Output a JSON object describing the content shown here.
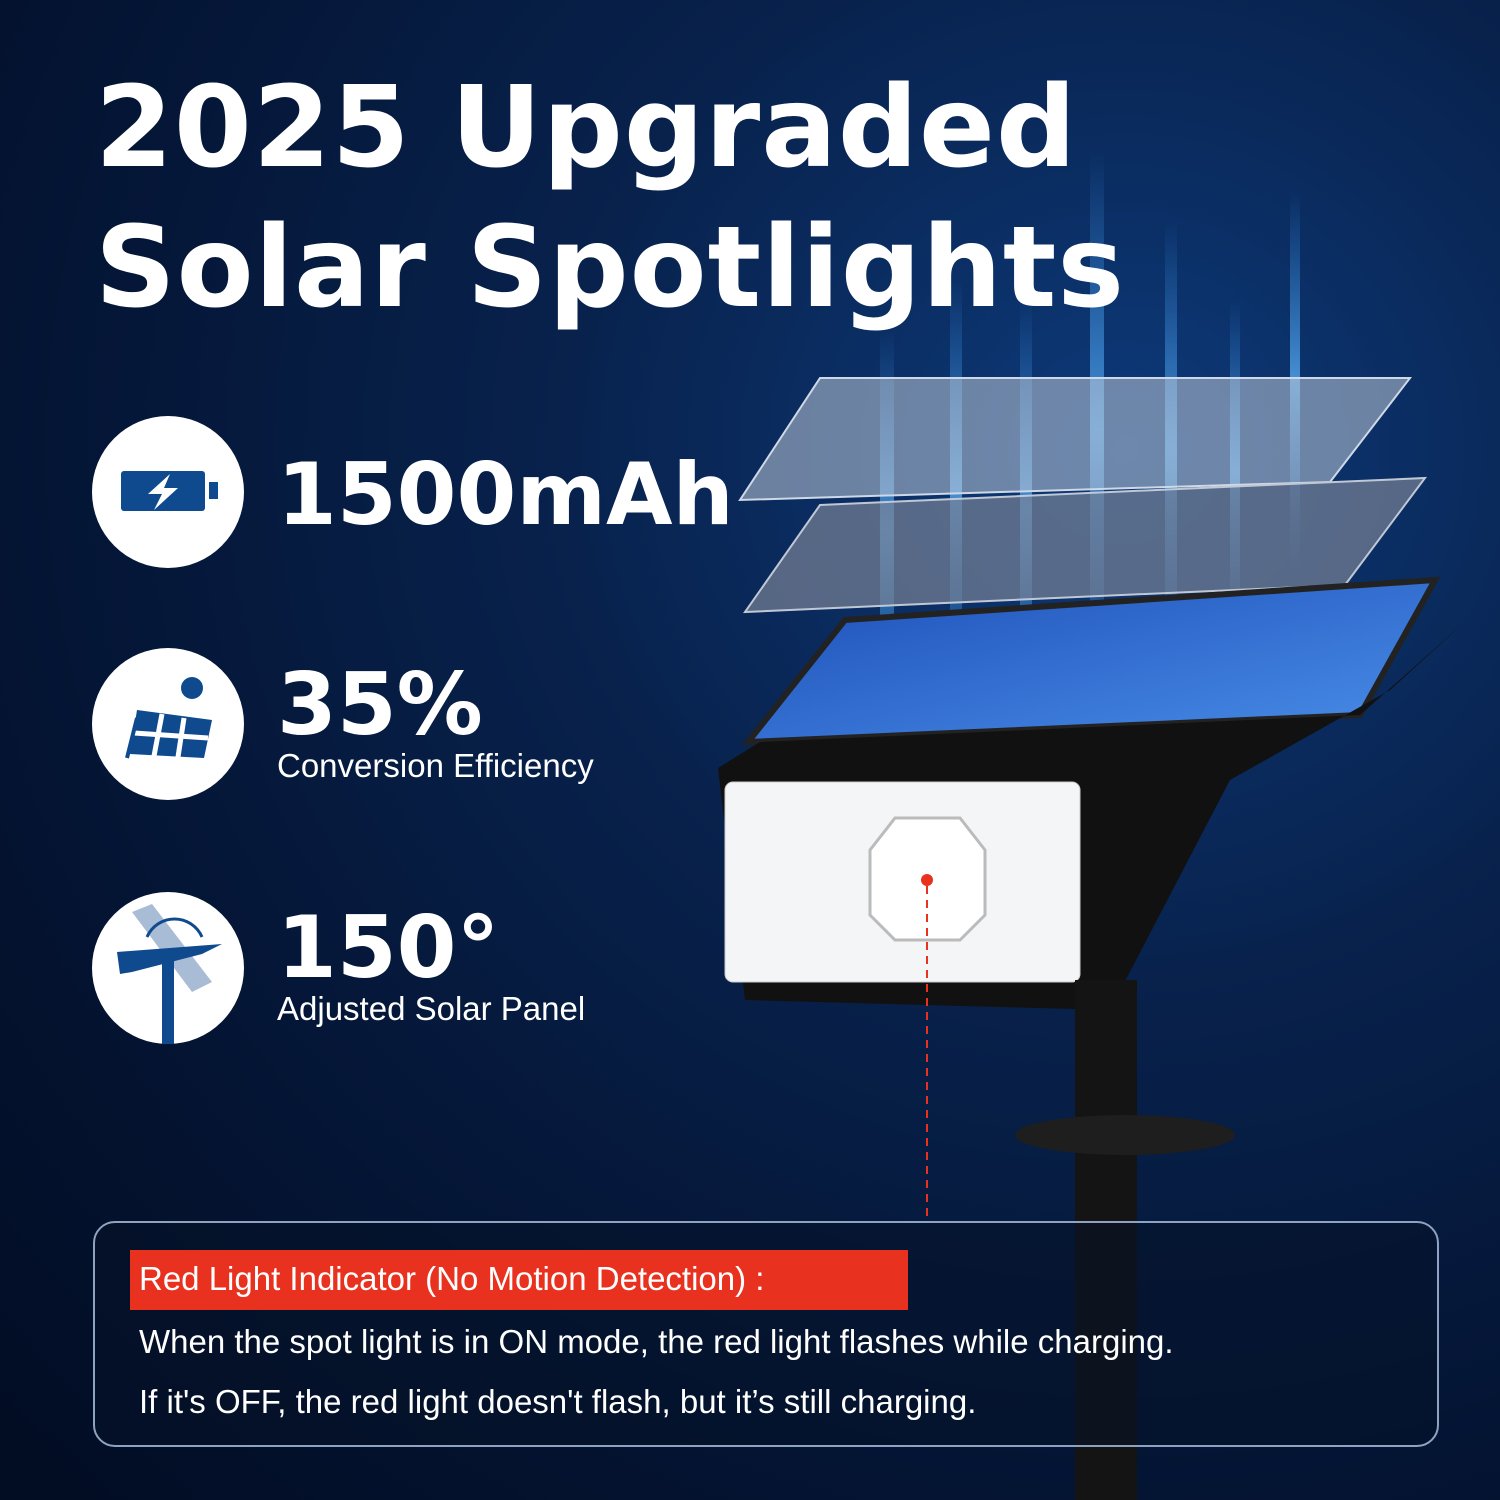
{
  "headline": {
    "line1": "2025  Upgraded",
    "line2": "Solar Spotlights"
  },
  "features": [
    {
      "icon": "battery-charging-icon",
      "value": "1500mAh",
      "label": ""
    },
    {
      "icon": "solar-panel-sun-icon",
      "value": "35%",
      "label": "Conversion Efficiency"
    },
    {
      "icon": "adjustable-panel-icon",
      "value": "150°",
      "label": "Adjusted Solar Panel"
    }
  ],
  "info": {
    "heading": "Red Light Indicator (No Motion Detection) :",
    "lines": [
      "When the spot light is in ON mode, the red light flashes while charging.",
      "If it's OFF, the red light doesn't flash, but it’s still charging."
    ]
  },
  "colors": {
    "icon_blue": "#0f4a8f",
    "indicator_red": "#e8321f",
    "background": "#041433"
  }
}
